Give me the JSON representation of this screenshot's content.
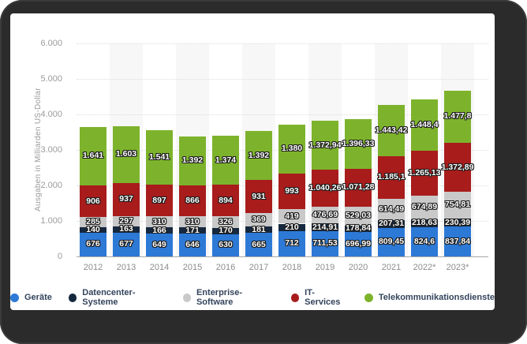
{
  "frame": {
    "frame_color": "#2b2b2b",
    "card_bg": "#ffffff",
    "stripe_color": "#f7f7f7"
  },
  "chart_data": {
    "type": "bar",
    "stacked": true,
    "title": "",
    "xlabel": "",
    "ylabel": "Ausgaben in Milliarden US-Dollar",
    "ylim": [
      0,
      6000
    ],
    "ytick_values": [
      0,
      1000,
      2000,
      3000,
      4000,
      5000,
      6000
    ],
    "ytick_labels": [
      "0",
      "1.000",
      "2.000",
      "3.000",
      "4.000",
      "5.000",
      "6.000"
    ],
    "grid": "horizontal-dotted",
    "legend_position": "bottom",
    "categories": [
      "2012",
      "2013",
      "2014",
      "2015",
      "2016",
      "2017",
      "2018",
      "2019",
      "2020",
      "2021",
      "2022*",
      "2023*"
    ],
    "series": [
      {
        "name": "Geräte",
        "color": "#2d79d6",
        "values": [
          676,
          677,
          649,
          646,
          630,
          665,
          712,
          711.53,
          696.99,
          809.45,
          824.6,
          837.84
        ],
        "labels": [
          "676",
          "677",
          "649",
          "646",
          "630",
          "665",
          "712",
          "711,53",
          "696,99",
          "809,45",
          "824,6",
          "837,84"
        ]
      },
      {
        "name": "Datencenter-Systeme",
        "color": "#16283e",
        "values": [
          140,
          163,
          166,
          171,
          170,
          181,
          210,
          214.91,
          178.84,
          207.31,
          218.63,
          230.39
        ],
        "labels": [
          "140",
          "163",
          "166",
          "171",
          "170",
          "181",
          "210",
          "214,91",
          "178,84",
          "207,31",
          "218,63",
          "230,39"
        ]
      },
      {
        "name": "Enterprise-Software",
        "color": "#c9c9c9",
        "values": [
          285,
          297,
          310,
          310,
          326,
          369,
          419,
          476.69,
          529.03,
          614.49,
          674.89,
          754.81
        ],
        "labels": [
          "285",
          "297",
          "310",
          "310",
          "326",
          "369",
          "419",
          "476,69",
          "529,03",
          "614,49",
          "674,89",
          "754,81"
        ]
      },
      {
        "name": "IT-Services",
        "color": "#a81c1c",
        "values": [
          906,
          937,
          897,
          866,
          894,
          931,
          993,
          1040.26,
          1071.28,
          1185.1,
          1265.13,
          1372.89
        ],
        "labels": [
          "906",
          "937",
          "897",
          "866",
          "894",
          "931",
          "993",
          "1.040,26",
          "1.071,28",
          "1.185,1",
          "1.265,13",
          "1.372,89"
        ]
      },
      {
        "name": "Telekommunikationsdienste",
        "color": "#7db32c",
        "values": [
          1641,
          1603,
          1541,
          1392,
          1374,
          1392,
          1380,
          1372.94,
          1396.33,
          1443.42,
          1448.4,
          1477.8
        ],
        "labels": [
          "1.641",
          "1.603",
          "1.541",
          "1.392",
          "1.374",
          "1.392",
          "1.380",
          "1.372,94",
          "1.396,33",
          "1.443,42",
          "1.448,4",
          "1.477,8"
        ]
      }
    ]
  }
}
